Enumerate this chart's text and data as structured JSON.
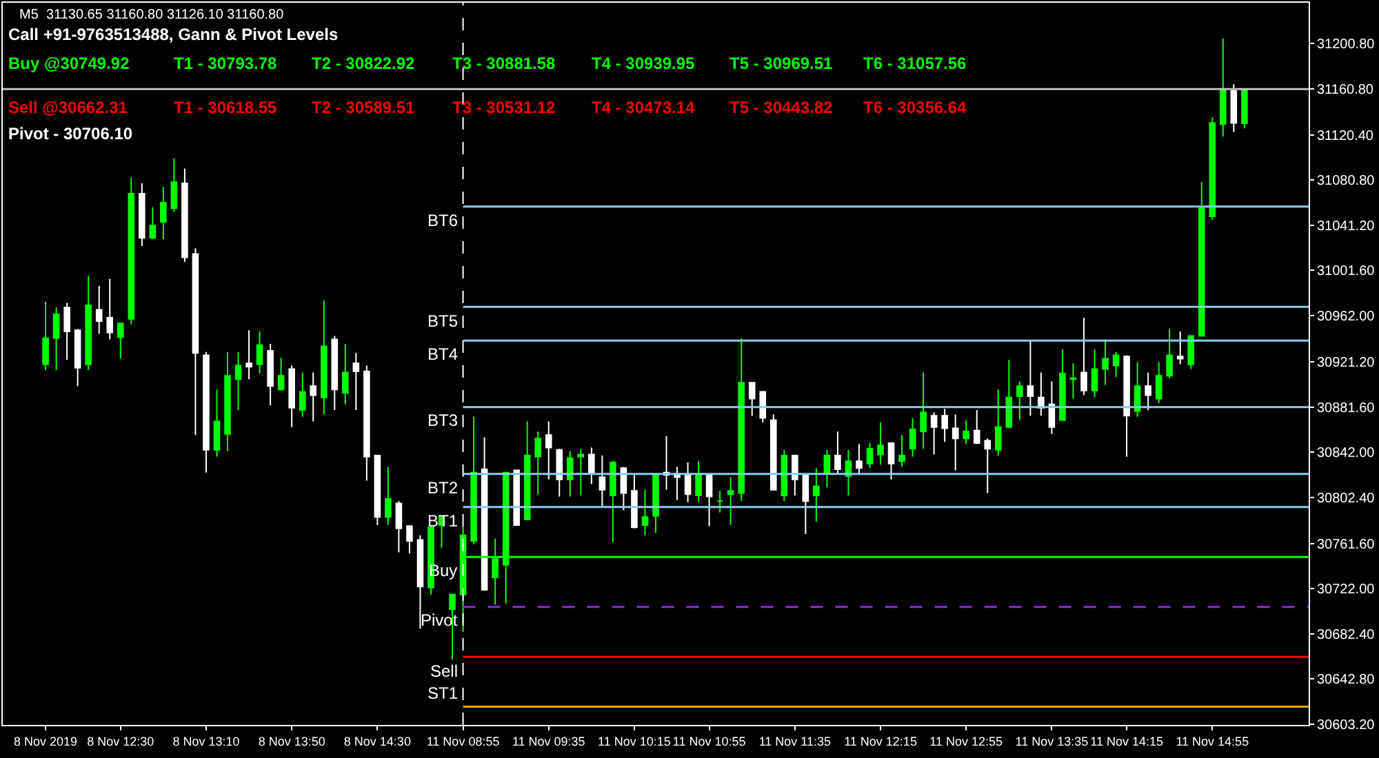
{
  "chart_data": {
    "type": "candlestick",
    "title": "M5  31130.65 31160.80 31126.10 31160.80",
    "subtitle": "Call +91-9763513488, Gann & Pivot Levels",
    "annotations": [
      "Buy @30749.92",
      "T1 - 30793.78",
      "T2 - 30822.92",
      "T3 - 30881.58",
      "T4 - 30939.95",
      "T5 - 30969.51",
      "T6 - 31057.56",
      "Sell @30662.31",
      "T1 - 30618.55",
      "T2 - 30589.51",
      "T3 - 30531.12",
      "T4 - 30473.14",
      "T5 - 30443.82",
      "T6 - 30356.64",
      "Pivot - 30706.10"
    ],
    "categories": [
      "8 Nov 2019",
      null,
      null,
      null,
      null,
      null,
      null,
      "8 Nov 12:30",
      null,
      null,
      null,
      null,
      null,
      null,
      null,
      "8 Nov 13:10",
      null,
      null,
      null,
      null,
      null,
      null,
      null,
      "8 Nov 13:50",
      null,
      null,
      null,
      null,
      null,
      null,
      null,
      "8 Nov 14:30",
      null,
      null,
      null,
      null,
      null,
      null,
      null,
      "11 Nov 08:55",
      null,
      null,
      null,
      null,
      null,
      null,
      null,
      "11 Nov 09:35",
      null,
      null,
      null,
      null,
      null,
      null,
      null,
      "11 Nov 10:15",
      null,
      null,
      null,
      null,
      null,
      null,
      "11 Nov 10:55",
      null,
      null,
      null,
      null,
      null,
      null,
      null,
      "11 Nov 11:35",
      null,
      null,
      null,
      null,
      null,
      null,
      null,
      "11 Nov 12:15",
      null,
      null,
      null,
      null,
      null,
      null,
      null,
      "11 Nov 12:55",
      null,
      null,
      null,
      null,
      null,
      null,
      null,
      "11 Nov 13:35",
      null,
      null,
      null,
      null,
      null,
      null,
      "11 Nov 14:15",
      null,
      null,
      null,
      null,
      null,
      null,
      null,
      "11 Nov 14:55",
      null,
      null,
      null
    ],
    "ohlc": [
      [
        30919,
        30974,
        30914,
        30942
      ],
      [
        30942,
        30969,
        30914,
        30963
      ],
      [
        30969,
        30973,
        30923,
        30948
      ],
      [
        30949,
        30950,
        30900,
        30916
      ],
      [
        30919,
        30997,
        30914,
        30971
      ],
      [
        30967,
        30988,
        30946,
        30957
      ],
      [
        30960,
        30994,
        30941,
        30947
      ],
      [
        30943,
        30955,
        30924,
        30955
      ],
      [
        30959,
        31083,
        30954,
        31069
      ],
      [
        31069,
        31078,
        31023,
        31030
      ],
      [
        31030,
        31057,
        31029,
        31041
      ],
      [
        31044,
        31075,
        31029,
        31061
      ],
      [
        31056,
        31100,
        31053,
        31079
      ],
      [
        31078,
        31091,
        31009,
        31013
      ],
      [
        31016,
        31021,
        30857,
        30929
      ],
      [
        30927,
        30930,
        30824,
        30844
      ],
      [
        30844,
        30897,
        30838,
        30869
      ],
      [
        30858,
        30930,
        30843,
        30909
      ],
      [
        30906,
        30930,
        30879,
        30918
      ],
      [
        30920,
        30949,
        30906,
        30917
      ],
      [
        30919,
        30948,
        30911,
        30936
      ],
      [
        30931,
        30937,
        30883,
        30900
      ],
      [
        30897,
        30925,
        30896,
        30909
      ],
      [
        30915,
        30918,
        30864,
        30881
      ],
      [
        30879,
        30912,
        30873,
        30895
      ],
      [
        30900,
        30912,
        30869,
        30892
      ],
      [
        30890,
        30975,
        30875,
        30935
      ],
      [
        30941,
        30944,
        30879,
        30897
      ],
      [
        30894,
        30937,
        30884,
        30912
      ],
      [
        30920,
        30929,
        30879,
        30913
      ],
      [
        30913,
        30918,
        30817,
        30838
      ],
      [
        30839,
        30839,
        30778,
        30785
      ],
      [
        30785,
        30829,
        30778,
        30801
      ],
      [
        30797,
        30799,
        30754,
        30775
      ],
      [
        30777,
        30778,
        30753,
        30764
      ],
      [
        30765,
        30769,
        30687,
        30724
      ],
      [
        30723,
        30776,
        30717,
        30776
      ],
      [
        30778,
        30785,
        30758,
        30785
      ],
      [
        30704,
        30717,
        30660,
        30717
      ],
      [
        30717,
        30777,
        30684,
        30769
      ],
      [
        30764,
        30873,
        30761,
        30824
      ],
      [
        30827,
        30855,
        30721,
        30721
      ],
      [
        30732,
        30766,
        30708,
        30749
      ],
      [
        30743,
        30824,
        30709,
        30824
      ],
      [
        30826,
        30826,
        30778,
        30778
      ],
      [
        30783,
        30869,
        30783,
        30839
      ],
      [
        30838,
        30860,
        30805,
        30854
      ],
      [
        30857,
        30869,
        30818,
        30846
      ],
      [
        30844,
        30845,
        30803,
        30818
      ],
      [
        30818,
        30843,
        30803,
        30837
      ],
      [
        30838,
        30845,
        30804,
        30840
      ],
      [
        30840,
        30846,
        30814,
        30824
      ],
      [
        30820,
        30839,
        30793,
        30809
      ],
      [
        30804,
        30834,
        30763,
        30833
      ],
      [
        30828,
        30829,
        30791,
        30806
      ],
      [
        30808,
        30822,
        30775,
        30776
      ],
      [
        30778,
        30809,
        30769,
        30785
      ],
      [
        30786,
        30822,
        30771,
        30822
      ],
      [
        30824,
        30856,
        30809,
        30822
      ],
      [
        30823,
        30829,
        30800,
        30820
      ],
      [
        30822,
        30833,
        30798,
        30805
      ],
      [
        30804,
        30834,
        30798,
        30822
      ],
      [
        30822,
        30822,
        30777,
        30803
      ],
      [
        30799,
        30808,
        30789,
        30799
      ],
      [
        30805,
        30820,
        30778,
        30808
      ],
      [
        30806,
        30942,
        30799,
        30903
      ],
      [
        30903,
        30903,
        30874,
        30889
      ],
      [
        30895,
        30895,
        30868,
        30872
      ],
      [
        30870,
        30875,
        30809,
        30809
      ],
      [
        30804,
        30844,
        30799,
        30839
      ],
      [
        30839,
        30839,
        30804,
        30818
      ],
      [
        30822,
        30822,
        30770,
        30799
      ],
      [
        30804,
        30828,
        30781,
        30812
      ],
      [
        30823,
        30844,
        30811,
        30839
      ],
      [
        30839,
        30860,
        30823,
        30827
      ],
      [
        30821,
        30844,
        30804,
        30834
      ],
      [
        30834,
        30849,
        30822,
        30828
      ],
      [
        30832,
        30850,
        30828,
        30845
      ],
      [
        30840,
        30868,
        30831,
        30848
      ],
      [
        30850,
        30850,
        30818,
        30832
      ],
      [
        30834,
        30857,
        30829,
        30839
      ],
      [
        30845,
        30872,
        30838,
        30862
      ],
      [
        30860,
        30912,
        30845,
        30877
      ],
      [
        30874,
        30877,
        30840,
        30864
      ],
      [
        30874,
        30880,
        30851,
        30863
      ],
      [
        30863,
        30875,
        30826,
        30854
      ],
      [
        30854,
        30870,
        30849,
        30860
      ],
      [
        30861,
        30879,
        30849,
        30850
      ],
      [
        30852,
        30854,
        30806,
        30845
      ],
      [
        30844,
        30897,
        30839,
        30864
      ],
      [
        30864,
        30923,
        30863,
        30890
      ],
      [
        30891,
        30904,
        30870,
        30900
      ],
      [
        30900,
        30940,
        30874,
        30891
      ],
      [
        30890,
        30912,
        30874,
        30881
      ],
      [
        30884,
        30904,
        30858,
        30864
      ],
      [
        30870,
        30932,
        30870,
        30911
      ],
      [
        30906,
        30920,
        30889,
        30907
      ],
      [
        30912,
        30960,
        30892,
        30896
      ],
      [
        30896,
        30932,
        30890,
        30915
      ],
      [
        30915,
        30941,
        30901,
        30924
      ],
      [
        30918,
        30930,
        30908,
        30927
      ],
      [
        30926,
        30927,
        30838,
        30874
      ],
      [
        30878,
        30921,
        30873,
        30900
      ],
      [
        30900,
        30912,
        30879,
        30892
      ],
      [
        30889,
        30921,
        30885,
        30909
      ],
      [
        30909,
        30950,
        30907,
        30927
      ],
      [
        30926,
        30948,
        30919,
        30924
      ],
      [
        30919,
        30944,
        30915,
        30944
      ],
      [
        30944,
        31079,
        30944,
        31056
      ],
      [
        31049,
        31136,
        31046,
        31131
      ],
      [
        31130,
        31205,
        31119,
        31160
      ],
      [
        31159,
        31165,
        31123,
        31131
      ],
      [
        31130.65,
        31160.8,
        31126.1,
        31160.8
      ]
    ],
    "colors": [
      "#00ff00",
      "#00ff00",
      "#ffffff",
      "#ffffff",
      "#00ff00",
      "#ffffff",
      "#ffffff",
      "#00ff00",
      "#00ff00",
      "#ffffff",
      "#00ff00",
      "#00ff00",
      "#00ff00",
      "#ffffff",
      "#ffffff",
      "#ffffff",
      "#00ff00",
      "#00ff00",
      "#00ff00",
      "#ffffff",
      "#00ff00",
      "#ffffff",
      "#00ff00",
      "#ffffff",
      "#00ff00",
      "#ffffff",
      "#00ff00",
      "#ffffff",
      "#00ff00",
      "#ffffff",
      "#ffffff",
      "#ffffff",
      "#00ff00",
      "#ffffff",
      "#ffffff",
      "#ffffff",
      "#00ff00",
      "#00ff00",
      "#00ff00",
      "#00ff00",
      "#00ff00",
      "#ffffff",
      "#00ff00",
      "#00ff00",
      "#ffffff",
      "#00ff00",
      "#00ff00",
      "#ffffff",
      "#ffffff",
      "#00ff00",
      "#00ff00",
      "#ffffff",
      "#ffffff",
      "#00ff00",
      "#ffffff",
      "#ffffff",
      "#00ff00",
      "#00ff00",
      "#ffffff",
      "#ffffff",
      "#ffffff",
      "#00ff00",
      "#ffffff",
      "#00ff00",
      "#00ff00",
      "#00ff00",
      "#ffffff",
      "#ffffff",
      "#ffffff",
      "#00ff00",
      "#ffffff",
      "#ffffff",
      "#00ff00",
      "#00ff00",
      "#ffffff",
      "#00ff00",
      "#ffffff",
      "#00ff00",
      "#00ff00",
      "#ffffff",
      "#00ff00",
      "#00ff00",
      "#00ff00",
      "#ffffff",
      "#ffffff",
      "#ffffff",
      "#00ff00",
      "#ffffff",
      "#ffffff",
      "#00ff00",
      "#00ff00",
      "#00ff00",
      "#ffffff",
      "#ffffff",
      "#ffffff",
      "#00ff00",
      "#00ff00",
      "#ffffff",
      "#00ff00",
      "#00ff00",
      "#00ff00",
      "#ffffff",
      "#00ff00",
      "#ffffff",
      "#00ff00",
      "#00ff00",
      "#ffffff",
      "#00ff00",
      "#00ff00",
      "#00ff00",
      "#00ff00",
      "#ffffff",
      "#00ff00"
    ],
    "ylim": [
      30602.5,
      31236.5
    ],
    "yticks": [
      {
        "value": 31200.8,
        "label": "31200.80"
      },
      {
        "value": 31160.8,
        "label": "31160.80"
      },
      {
        "value": 31120.4,
        "label": "31120.40"
      },
      {
        "value": 31080.8,
        "label": "31080.80"
      },
      {
        "value": 31041.2,
        "label": "31041.20"
      },
      {
        "value": 31001.6,
        "label": "31001.60"
      },
      {
        "value": 30962,
        "label": "30962.00"
      },
      {
        "value": 30921.2,
        "label": "30921.20"
      },
      {
        "value": 30881.6,
        "label": "30881.60"
      },
      {
        "value": 30842,
        "label": "30842.00"
      },
      {
        "value": 30802.4,
        "label": "30802.40"
      },
      {
        "value": 30761.6,
        "label": "30761.60"
      },
      {
        "value": 30722,
        "label": "30722.00"
      },
      {
        "value": 30682.4,
        "label": "30682.40"
      },
      {
        "value": 30642.8,
        "label": "30642.80"
      },
      {
        "value": 30603.2,
        "label": "30603.20"
      }
    ],
    "ref_lines": [
      {
        "axis": "x",
        "value": "11 Nov 08:55",
        "color": "#ffffff",
        "line_style": "dashed"
      },
      {
        "axis": "y",
        "value": 31160.8,
        "color": "#c0c0c0",
        "line_style": "solid"
      },
      {
        "axis": "y",
        "value": 31057.56,
        "label": "BT6",
        "color": "#87ceeb",
        "line_style": "solid"
      },
      {
        "axis": "y",
        "value": 30969.51,
        "label": "BT5",
        "color": "#87ceeb",
        "line_style": "solid"
      },
      {
        "axis": "y",
        "value": 30939.95,
        "label": "BT4",
        "color": "#87ceeb",
        "line_style": "solid"
      },
      {
        "axis": "y",
        "value": 30881.58,
        "label": "BT3",
        "color": "#87ceeb",
        "line_style": "solid"
      },
      {
        "axis": "y",
        "value": 30822.92,
        "label": "BT2",
        "color": "#87ceeb",
        "line_style": "solid"
      },
      {
        "axis": "y",
        "value": 30793.78,
        "label": "BT1",
        "color": "#87ceeb",
        "line_style": "solid"
      },
      {
        "axis": "y",
        "value": 30749.92,
        "label": "Buy",
        "color": "#00ff00",
        "line_style": "solid"
      },
      {
        "axis": "y",
        "value": 30706.1,
        "label": "Pivot",
        "color": "#8a2be2",
        "line_style": "dashed"
      },
      {
        "axis": "y",
        "value": 30662.31,
        "label": "Sell",
        "color": "#ff0000",
        "line_style": "solid"
      },
      {
        "axis": "y",
        "value": 30618.55,
        "label": "ST1",
        "color": "#ffa500",
        "line_style": "solid"
      }
    ],
    "grid": false
  }
}
